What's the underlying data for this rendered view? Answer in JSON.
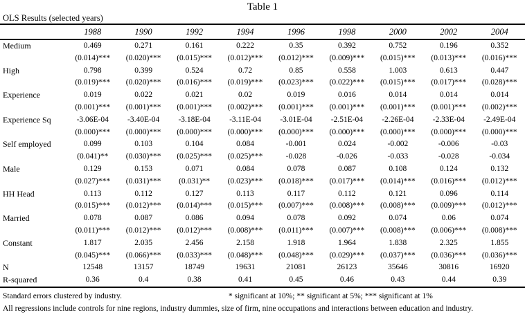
{
  "title": "Table 1",
  "subtitle": "OLS Results (selected years)",
  "table": {
    "columns": [
      "1988",
      "1990",
      "1992",
      "1994",
      "1996",
      "1998",
      "2000",
      "2002",
      "2004"
    ],
    "rows": [
      {
        "label": "Medium",
        "coef": [
          "0.469",
          "0.271",
          "0.161",
          "0.222",
          "0.35",
          "0.392",
          "0.752",
          "0.196",
          "0.352"
        ],
        "se": [
          "(0.014)***",
          "(0.020)***",
          "(0.015)***",
          "(0.012)***",
          "(0.012)***",
          "(0.009)***",
          "(0.015)***",
          "(0.013)***",
          "(0.016)***"
        ]
      },
      {
        "label": "High",
        "coef": [
          "0.798",
          "0.399",
          "0.524",
          "0.72",
          "0.85",
          "0.558",
          "1.003",
          "0.613",
          "0.447"
        ],
        "se": [
          "(0.019)***",
          "(0.020)***",
          "(0.016)***",
          "(0.019)***",
          "(0.023)***",
          "(0.022)***",
          "(0.015)***",
          "(0.017)***",
          "(0.028)***"
        ]
      },
      {
        "label": "Experience",
        "coef": [
          "0.019",
          "0.022",
          "0.021",
          "0.02",
          "0.019",
          "0.016",
          "0.014",
          "0.014",
          "0.014"
        ],
        "se": [
          "(0.001)***",
          "(0.001)***",
          "(0.001)***",
          "(0.002)***",
          "(0.001)***",
          "(0.001)***",
          "(0.001)***",
          "(0.001)***",
          "(0.002)***"
        ]
      },
      {
        "label": "Experience Sq",
        "coef": [
          "-3.06E-04",
          "-3.40E-04",
          "-3.18E-04",
          "-3.11E-04",
          "-3.01E-04",
          "-2.51E-04",
          "-2.26E-04",
          "-2.33E-04",
          "-2.49E-04"
        ],
        "se": [
          "(0.000)***",
          "(0.000)***",
          "(0.000)***",
          "(0.000)***",
          "(0.000)***",
          "(0.000)***",
          "(0.000)***",
          "(0.000)***",
          "(0.000)***"
        ]
      },
      {
        "label": "Self employed",
        "coef": [
          "0.099",
          "0.103",
          "0.104",
          "0.084",
          "-0.001",
          "0.024",
          "-0.002",
          "-0.006",
          "-0.03"
        ],
        "se": [
          "(0.041)**",
          "(0.030)***",
          "(0.025)***",
          "(0.025)***",
          "-0.028",
          "-0.026",
          "-0.033",
          "-0.028",
          "-0.034"
        ]
      },
      {
        "label": "Male",
        "coef": [
          "0.129",
          "0.153",
          "0.071",
          "0.084",
          "0.078",
          "0.087",
          "0.108",
          "0.124",
          "0.132"
        ],
        "se": [
          "(0.027)***",
          "(0.031)***",
          "(0.031)**",
          "(0.023)***",
          "(0.018)***",
          "(0.017)***",
          "(0.014)***",
          "(0.016)***",
          "(0.012)***"
        ]
      },
      {
        "label": "HH Head",
        "coef": [
          "0.113",
          "0.112",
          "0.127",
          "0.113",
          "0.117",
          "0.112",
          "0.121",
          "0.096",
          "0.114"
        ],
        "se": [
          "(0.015)***",
          "(0.012)***",
          "(0.014)***",
          "(0.015)***",
          "(0.007)***",
          "(0.008)***",
          "(0.008)***",
          "(0.009)***",
          "(0.012)***"
        ]
      },
      {
        "label": "Married",
        "coef": [
          "0.078",
          "0.087",
          "0.086",
          "0.094",
          "0.078",
          "0.092",
          "0.074",
          "0.06",
          "0.074"
        ],
        "se": [
          "(0.011)***",
          "(0.012)***",
          "(0.012)***",
          "(0.008)***",
          "(0.011)***",
          "(0.007)***",
          "(0.008)***",
          "(0.006)***",
          "(0.008)***"
        ]
      },
      {
        "label": "Constant",
        "coef": [
          "1.817",
          "2.035",
          "2.456",
          "2.158",
          "1.918",
          "1.964",
          "1.838",
          "2.325",
          "1.855"
        ],
        "se": [
          "(0.045)***",
          "(0.066)***",
          "(0.033)***",
          "(0.048)***",
          "(0.048)***",
          "(0.029)***",
          "(0.037)***",
          "(0.036)***",
          "(0.036)***"
        ]
      },
      {
        "label": "N",
        "values": [
          "12548",
          "13157",
          "18749",
          "19631",
          "21081",
          "26123",
          "35646",
          "30816",
          "16920"
        ]
      },
      {
        "label": "R-squared",
        "values": [
          "0.36",
          "0.4",
          "0.38",
          "0.41",
          "0.45",
          "0.46",
          "0.43",
          "0.44",
          "0.39"
        ]
      }
    ]
  },
  "footnotes": {
    "clustered": "Standard errors clustered by industry.",
    "significance": "* significant at 10%; ** significant at 5%; *** significant at 1%",
    "controls": "All regressions include controls for nine regions, industry dummies, size of firm, nine occupations and interactions between education and industry."
  }
}
